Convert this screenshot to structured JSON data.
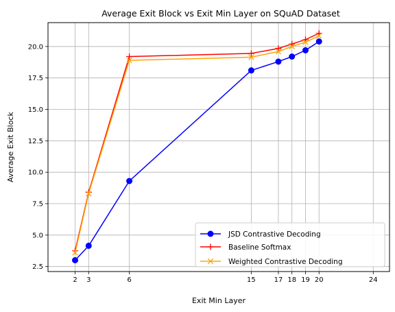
{
  "chart_data": {
    "type": "line",
    "title": "Average Exit Block vs Exit Min Layer on SQuAD Dataset",
    "xlabel": "Exit Min Layer",
    "ylabel": "Average Exit Block",
    "xlim": [
      0,
      25.2
    ],
    "ylim": [
      2.1,
      21.9
    ],
    "xticks": [
      2,
      3,
      6,
      15,
      17,
      18,
      19,
      20,
      24
    ],
    "yticks": [
      2.5,
      5.0,
      7.5,
      10.0,
      12.5,
      15.0,
      17.5,
      20.0
    ],
    "ytick_labels": [
      "2.5",
      "5.0",
      "7.5",
      "10.0",
      "12.5",
      "15.0",
      "17.5",
      "20.0"
    ],
    "grid": true,
    "legend_position": "lower-right",
    "x": [
      2,
      3,
      6,
      15,
      17,
      18,
      19,
      20
    ],
    "series": [
      {
        "name": "JSD Contrastive Decoding",
        "color": "#0000ff",
        "marker": "circle",
        "values": [
          3.0,
          4.15,
          9.3,
          18.1,
          18.8,
          19.2,
          19.7,
          20.4
        ]
      },
      {
        "name": "Baseline Softmax",
        "color": "#ff0000",
        "marker": "plus",
        "values": [
          3.75,
          8.4,
          19.2,
          19.45,
          19.85,
          20.2,
          20.55,
          21.05
        ]
      },
      {
        "name": "Weighted Contrastive Decoding",
        "color": "#ffa500",
        "marker": "x",
        "values": [
          3.6,
          8.3,
          18.9,
          19.15,
          19.6,
          20.0,
          20.35,
          20.85
        ]
      }
    ]
  }
}
